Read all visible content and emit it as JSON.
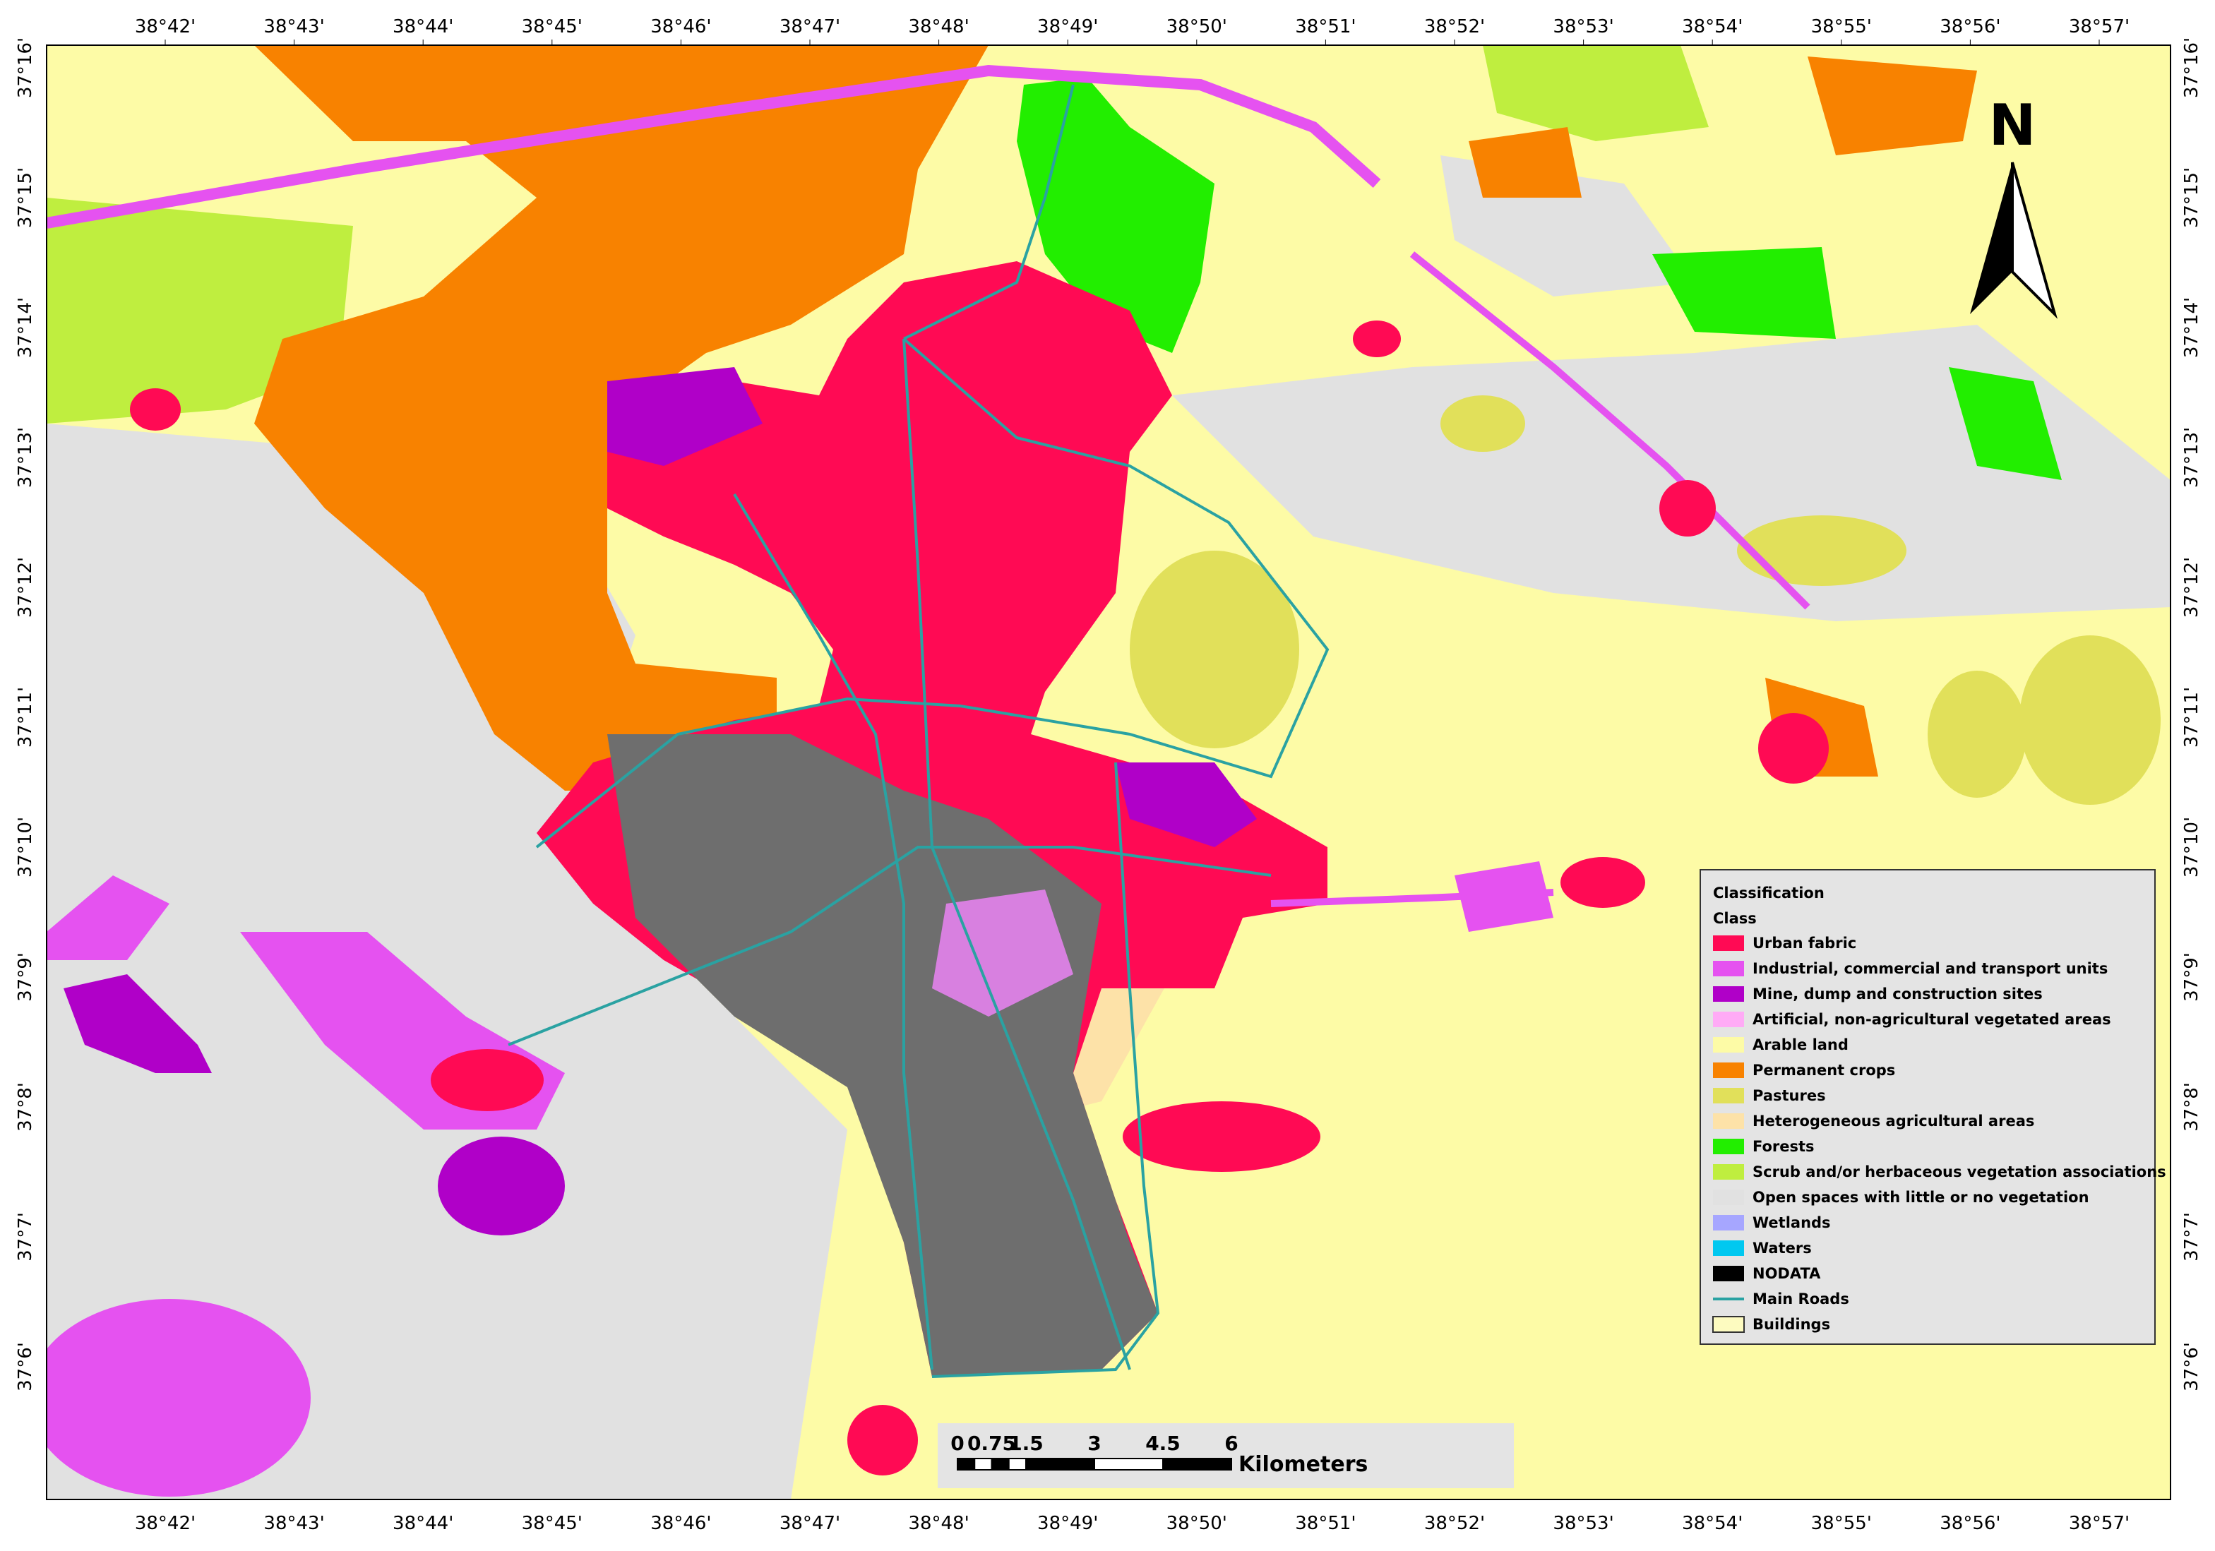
{
  "map": {
    "north_label": "N",
    "lon_labels": [
      "38°42'",
      "38°43'",
      "38°44'",
      "38°45'",
      "38°46'",
      "38°47'",
      "38°48'",
      "38°49'",
      "38°50'",
      "38°51'",
      "38°52'",
      "38°53'",
      "38°54'",
      "38°55'",
      "38°56'",
      "38°57'"
    ],
    "lat_labels": [
      "37°16'",
      "37°15'",
      "37°14'",
      "37°13'",
      "37°12'",
      "37°11'",
      "37°10'",
      "37°9'",
      "37°8'",
      "37°7'",
      "37°6'"
    ],
    "legend": {
      "title": "Classification",
      "subtitle": "Class",
      "items": [
        {
          "label": "Urban fabric",
          "color": "#ff0a54"
        },
        {
          "label": "Industrial, commercial and transport units",
          "color": "#e552f0"
        },
        {
          "label": "Mine, dump and construction sites",
          "color": "#b000c8"
        },
        {
          "label": "Artificial, non-agricultural vegetated areas",
          "color": "#ffabf6"
        },
        {
          "label": "Arable land",
          "color": "#fdfba6"
        },
        {
          "label": "Permanent crops",
          "color": "#f88200"
        },
        {
          "label": "Pastures",
          "color": "#e1e05a"
        },
        {
          "label": "Heterogeneous agricultural areas",
          "color": "#fde2a8"
        },
        {
          "label": "Forests",
          "color": "#22ee00"
        },
        {
          "label": "Scrub and/or herbaceous vegetation associations",
          "color": "#bfee3f"
        },
        {
          "label": "Open spaces with little or no vegetation",
          "color": "#e1e1e1"
        },
        {
          "label": "Wetlands",
          "color": "#a6a6ff"
        },
        {
          "label": "Waters",
          "color": "#00c8f0"
        },
        {
          "label": "NODATA",
          "color": "#000000"
        },
        {
          "label": "Main Roads",
          "color": "#2aa2a2"
        },
        {
          "label": "Buildings",
          "color": "#fdfbc0"
        }
      ]
    },
    "scale_bar": {
      "labels": [
        "0",
        "0.75",
        "1.5",
        "3",
        "4.5",
        "6"
      ],
      "unit": "Kilometers"
    }
  }
}
